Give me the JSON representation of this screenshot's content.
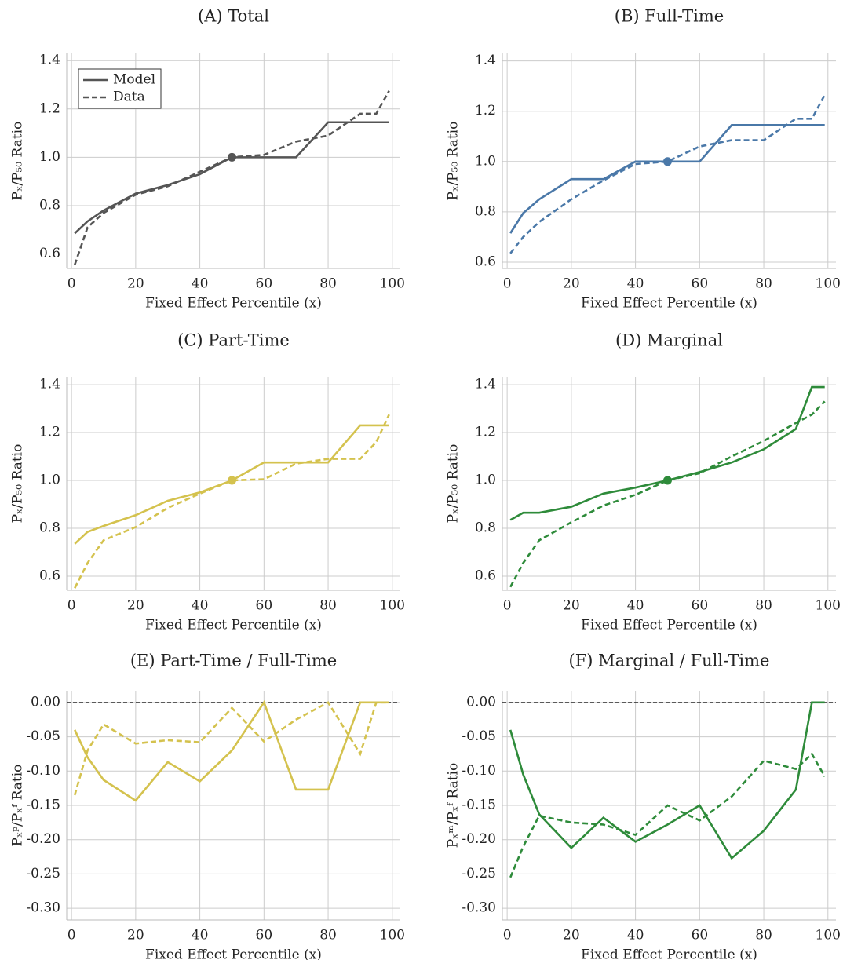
{
  "chart_data": [
    {
      "type": "line",
      "title": "(A) Total",
      "xlabel": "Fixed Effect Percentile (x)",
      "ylabel": "Pₓ/P₅₀ Ratio",
      "x": [
        1,
        5,
        10,
        20,
        30,
        40,
        50,
        60,
        70,
        80,
        90,
        95,
        99
      ],
      "series": [
        {
          "name": "Model",
          "color": "#555555",
          "linestyle": "solid",
          "values": [
            0.685,
            0.735,
            0.78,
            0.85,
            0.885,
            0.93,
            1.0,
            1.0,
            1.0,
            1.145,
            1.145,
            1.145,
            1.145
          ]
        },
        {
          "name": "Data",
          "color": "#555555",
          "linestyle": "dashed",
          "values": [
            0.555,
            0.71,
            0.77,
            0.845,
            0.88,
            0.94,
            1.0,
            1.01,
            1.065,
            1.09,
            1.18,
            1.18,
            1.275
          ]
        }
      ],
      "points": [
        {
          "x": 50,
          "y": 1.0,
          "color": "#555555"
        }
      ],
      "xlim": [
        -1.5,
        102.5
      ],
      "ylim": [
        0.54,
        1.43
      ],
      "xticks": [
        0,
        20,
        40,
        60,
        80,
        100
      ],
      "yticks": [
        0.6,
        0.8,
        {
          "value": 1.0,
          "label": "1.0"
        },
        1.2,
        1.4
      ],
      "grid": true,
      "legend": "upper left"
    },
    {
      "type": "line",
      "title": "(B) Full-Time",
      "xlabel": "Fixed Effect Percentile (x)",
      "ylabel": "Pₓ/P₅₀ Ratio",
      "x": [
        1,
        5,
        10,
        20,
        30,
        40,
        50,
        60,
        70,
        80,
        90,
        95,
        99
      ],
      "series": [
        {
          "color": "#4a78a8",
          "linestyle": "solid",
          "values": [
            0.715,
            0.795,
            0.85,
            0.93,
            0.93,
            1.0,
            1.0,
            1.0,
            1.145,
            1.145,
            1.145,
            1.145,
            1.145
          ]
        },
        {
          "color": "#4a78a8",
          "linestyle": "dashed",
          "values": [
            0.635,
            0.7,
            0.76,
            0.85,
            0.925,
            0.99,
            1.0,
            1.06,
            1.085,
            1.085,
            1.17,
            1.17,
            1.265
          ]
        }
      ],
      "points": [
        {
          "x": 50,
          "y": 1.0,
          "color": "#4a78a8"
        }
      ],
      "xlim": [
        -1.5,
        102.5
      ],
      "ylim": [
        0.575,
        1.43
      ],
      "xticks": [
        0,
        20,
        40,
        60,
        80,
        100
      ],
      "yticks": [
        0.6,
        0.8,
        {
          "value": 1.0,
          "label": "1.0"
        },
        1.2,
        1.4
      ],
      "grid": true
    },
    {
      "type": "line",
      "title": "(C) Part-Time",
      "xlabel": "Fixed Effect Percentile (x)",
      "ylabel": "Pₓ/P₅₀ Ratio",
      "x": [
        1,
        5,
        10,
        20,
        30,
        40,
        50,
        60,
        70,
        80,
        90,
        95,
        99
      ],
      "series": [
        {
          "color": "#d4c24e",
          "linestyle": "solid",
          "values": [
            0.735,
            0.785,
            0.81,
            0.855,
            0.915,
            0.95,
            1.0,
            1.075,
            1.075,
            1.075,
            1.23,
            1.23,
            1.23
          ]
        },
        {
          "color": "#d4c24e",
          "linestyle": "dashed",
          "values": [
            0.55,
            0.655,
            0.75,
            0.805,
            0.885,
            0.945,
            1.0,
            1.005,
            1.07,
            1.09,
            1.09,
            1.16,
            1.275
          ]
        }
      ],
      "points": [
        {
          "x": 50,
          "y": 1.0,
          "color": "#d4c24e"
        }
      ],
      "xlim": [
        -1.5,
        102.5
      ],
      "ylim": [
        0.541,
        1.433
      ],
      "xticks": [
        0,
        20,
        40,
        60,
        80,
        100
      ],
      "yticks": [
        0.6,
        0.8,
        {
          "value": 1.0,
          "label": "1.0"
        },
        1.2,
        1.4
      ],
      "grid": true
    },
    {
      "type": "line",
      "title": "(D) Marginal",
      "xlabel": "Fixed Effect Percentile (x)",
      "ylabel": "Pₓ/P₅₀ Ratio",
      "x": [
        1,
        5,
        10,
        20,
        30,
        40,
        50,
        60,
        70,
        80,
        90,
        95,
        99
      ],
      "series": [
        {
          "color": "#2e8b3a",
          "linestyle": "solid",
          "values": [
            0.835,
            0.865,
            0.865,
            0.89,
            0.945,
            0.97,
            1.0,
            1.035,
            1.075,
            1.13,
            1.215,
            1.39,
            1.39
          ]
        },
        {
          "color": "#2e8b3a",
          "linestyle": "dashed",
          "values": [
            0.555,
            0.655,
            0.75,
            0.825,
            0.895,
            0.94,
            1.0,
            1.03,
            1.1,
            1.165,
            1.24,
            1.275,
            1.33
          ]
        }
      ],
      "points": [
        {
          "x": 50,
          "y": 1.0,
          "color": "#2e8b3a"
        }
      ],
      "xlim": [
        -1.5,
        102.5
      ],
      "ylim": [
        0.541,
        1.433
      ],
      "xticks": [
        0,
        20,
        40,
        60,
        80,
        100
      ],
      "yticks": [
        0.6,
        0.8,
        {
          "value": 1.0,
          "label": "1.0"
        },
        1.2,
        1.4
      ],
      "grid": true
    },
    {
      "type": "line",
      "title": "(E) Part-Time / Full-Time",
      "xlabel": "Fixed Effect Percentile (x)",
      "ylabel": "Pₓᵖ/Pₓᶠ Ratio",
      "x": [
        1,
        5,
        10,
        20,
        30,
        40,
        50,
        60,
        70,
        80,
        90,
        95,
        99
      ],
      "series": [
        {
          "color": "#d4c24e",
          "linestyle": "solid",
          "values": [
            -0.04,
            -0.08,
            -0.113,
            -0.143,
            -0.087,
            -0.115,
            -0.07,
            0.0,
            -0.127,
            -0.127,
            0.0,
            0.0,
            0.0
          ]
        },
        {
          "color": "#d4c24e",
          "linestyle": "dashed",
          "values": [
            -0.135,
            -0.07,
            -0.032,
            -0.06,
            -0.055,
            -0.058,
            -0.008,
            -0.057,
            -0.025,
            0.0,
            -0.075,
            0.0,
            0.0
          ]
        }
      ],
      "hline": 0,
      "xlim": [
        -1.5,
        102.5
      ],
      "ylim": [
        -0.317,
        0.017
      ],
      "xticks": [
        0,
        20,
        40,
        60,
        80,
        100
      ],
      "yticks": [
        {
          "value": 0,
          "label": "0.00"
        },
        {
          "value": -0.05,
          "label": "-0.05"
        },
        {
          "value": -0.1,
          "label": "-0.10"
        },
        {
          "value": -0.15,
          "label": "-0.15"
        },
        {
          "value": -0.2,
          "label": "-0.20"
        },
        {
          "value": -0.25,
          "label": "-0.25"
        },
        {
          "value": -0.3,
          "label": "-0.30"
        }
      ],
      "grid": true
    },
    {
      "type": "line",
      "title": "(F) Marginal / Full-Time",
      "xlabel": "Fixed Effect Percentile (x)",
      "ylabel": "Pₓᵐ/Pₓᶠ Ratio",
      "x": [
        1,
        5,
        10,
        20,
        30,
        40,
        50,
        60,
        70,
        80,
        90,
        95,
        99
      ],
      "series": [
        {
          "color": "#2e8b3a",
          "linestyle": "solid",
          "values": [
            -0.04,
            -0.105,
            -0.163,
            -0.212,
            -0.168,
            -0.203,
            -0.178,
            -0.15,
            -0.227,
            -0.187,
            -0.127,
            0.0,
            0.0
          ]
        },
        {
          "color": "#2e8b3a",
          "linestyle": "dashed",
          "values": [
            -0.255,
            -0.21,
            -0.165,
            -0.175,
            -0.178,
            -0.193,
            -0.15,
            -0.172,
            -0.137,
            -0.085,
            -0.097,
            -0.075,
            -0.108
          ]
        }
      ],
      "hline": 0,
      "xlim": [
        -1.5,
        102.5
      ],
      "ylim": [
        -0.317,
        0.017
      ],
      "xticks": [
        0,
        20,
        40,
        60,
        80,
        100
      ],
      "yticks": [
        {
          "value": 0,
          "label": "0.00"
        },
        {
          "value": -0.05,
          "label": "-0.05"
        },
        {
          "value": -0.1,
          "label": "-0.10"
        },
        {
          "value": -0.15,
          "label": "-0.15"
        },
        {
          "value": -0.2,
          "label": "-0.20"
        },
        {
          "value": -0.25,
          "label": "-0.25"
        },
        {
          "value": -0.3,
          "label": "-0.30"
        }
      ],
      "grid": true
    }
  ]
}
